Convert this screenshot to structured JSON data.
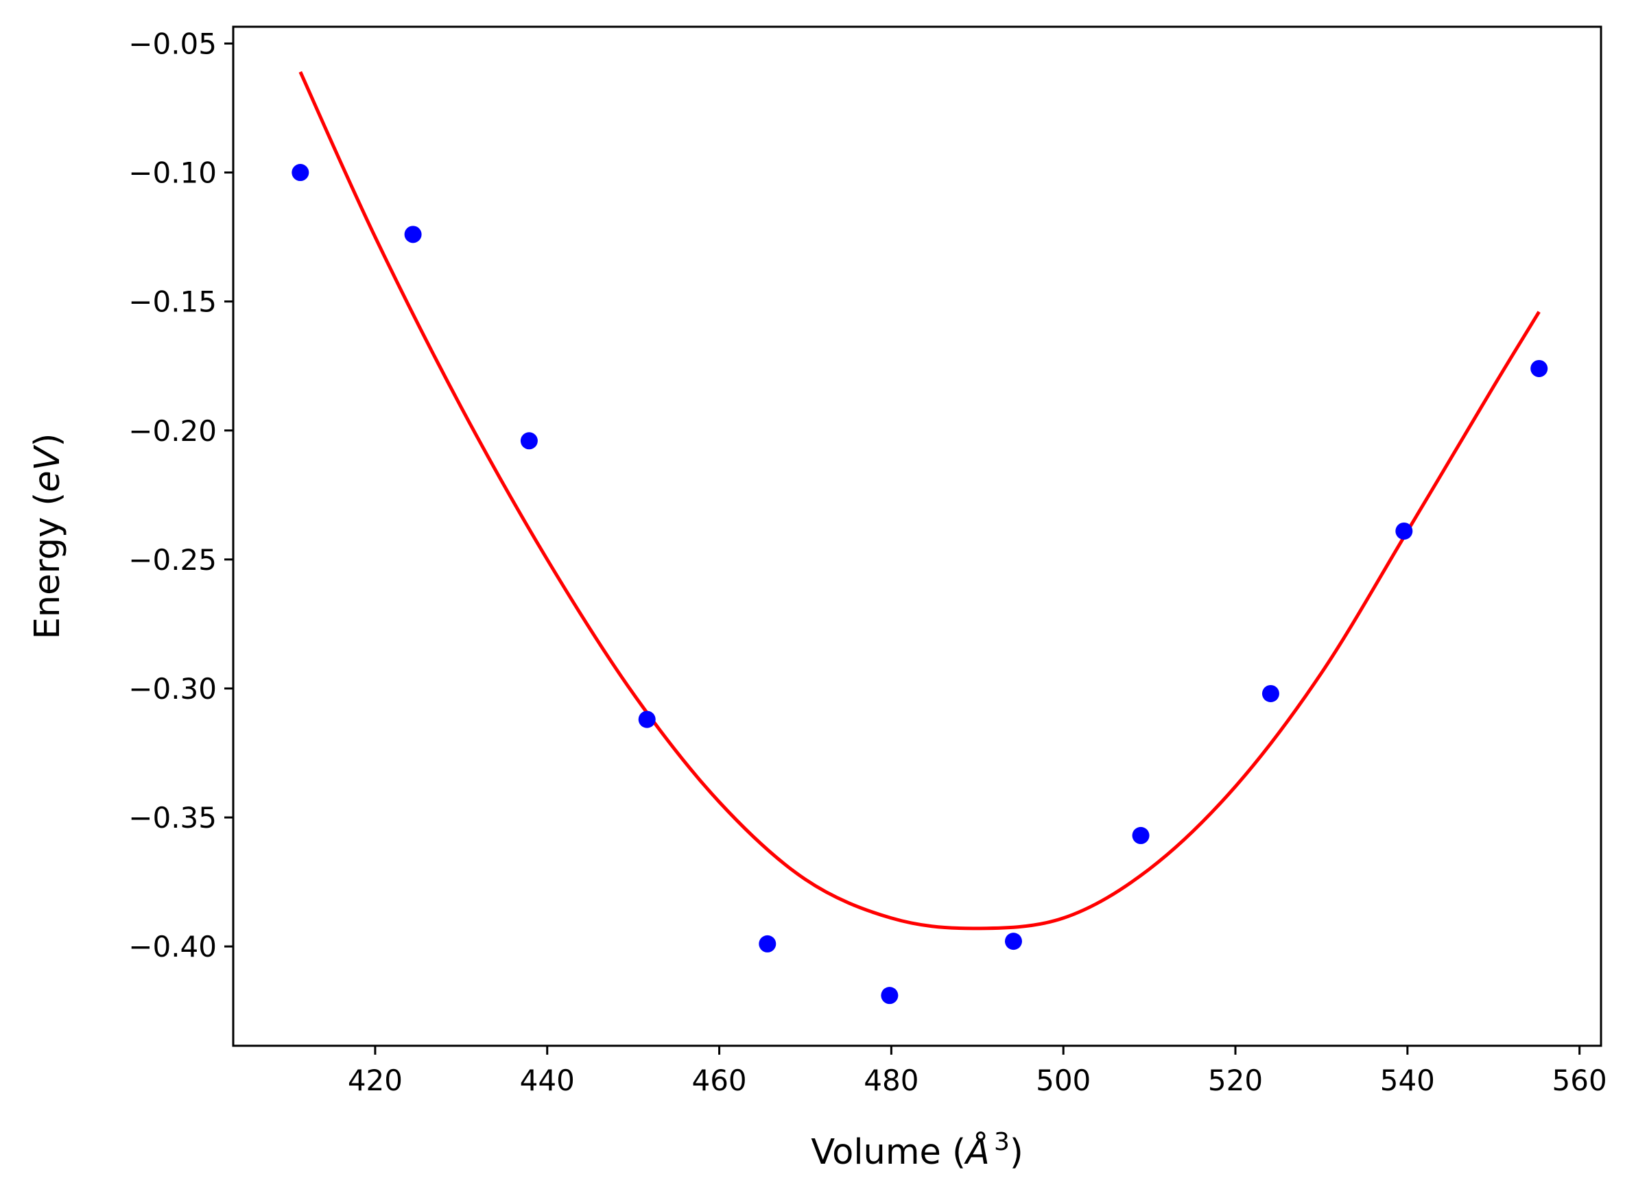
{
  "chart_data": {
    "type": "scatter",
    "title": "",
    "xlabel": "Volume (Å³)",
    "ylabel": "Energy (eV)",
    "xlabel_parts": {
      "prefix": "Volume (",
      "symbol": "Å",
      "exponent": "3",
      "suffix": ")"
    },
    "ylabel_parts": {
      "prefix": "Energy (",
      "unit": "eV",
      "suffix": ")"
    },
    "xlim": [
      403.5,
      562.5
    ],
    "ylim": [
      -0.4385,
      -0.0435
    ],
    "x_ticks": [
      420,
      440,
      460,
      480,
      500,
      520,
      540,
      560
    ],
    "x_tick_labels": [
      "420",
      "440",
      "460",
      "480",
      "500",
      "520",
      "540",
      "560"
    ],
    "y_ticks": [
      -0.05,
      -0.1,
      -0.15,
      -0.2,
      -0.25,
      -0.3,
      -0.35,
      -0.4
    ],
    "y_tick_labels": [
      "−0.05",
      "−0.10",
      "−0.15",
      "−0.20",
      "−0.25",
      "−0.30",
      "−0.35",
      "−0.40"
    ],
    "grid": false,
    "series": [
      {
        "kind": "points",
        "color": "#0000ff",
        "points": [
          {
            "x": 411.3,
            "y": -0.1
          },
          {
            "x": 424.4,
            "y": -0.124
          },
          {
            "x": 437.9,
            "y": -0.204
          },
          {
            "x": 451.6,
            "y": -0.312
          },
          {
            "x": 465.6,
            "y": -0.399
          },
          {
            "x": 479.8,
            "y": -0.419
          },
          {
            "x": 494.2,
            "y": -0.398
          },
          {
            "x": 509.0,
            "y": -0.357
          },
          {
            "x": 524.1,
            "y": -0.302
          },
          {
            "x": 539.6,
            "y": -0.239
          },
          {
            "x": 555.3,
            "y": -0.176
          }
        ]
      },
      {
        "kind": "fit",
        "color": "#ff0000",
        "x_range": [
          411.3,
          555.3
        ],
        "points": [
          {
            "x": 411.3,
            "y": -0.061
          },
          {
            "x": 420.0,
            "y": -0.125
          },
          {
            "x": 430.0,
            "y": -0.191
          },
          {
            "x": 440.0,
            "y": -0.25
          },
          {
            "x": 450.0,
            "y": -0.302
          },
          {
            "x": 460.0,
            "y": -0.344
          },
          {
            "x": 470.0,
            "y": -0.374
          },
          {
            "x": 480.0,
            "y": -0.389
          },
          {
            "x": 489.5,
            "y": -0.393
          },
          {
            "x": 500.0,
            "y": -0.389
          },
          {
            "x": 510.0,
            "y": -0.37
          },
          {
            "x": 520.0,
            "y": -0.338
          },
          {
            "x": 530.0,
            "y": -0.294
          },
          {
            "x": 540.0,
            "y": -0.239
          },
          {
            "x": 550.0,
            "y": -0.183
          },
          {
            "x": 555.3,
            "y": -0.154
          }
        ]
      }
    ]
  }
}
